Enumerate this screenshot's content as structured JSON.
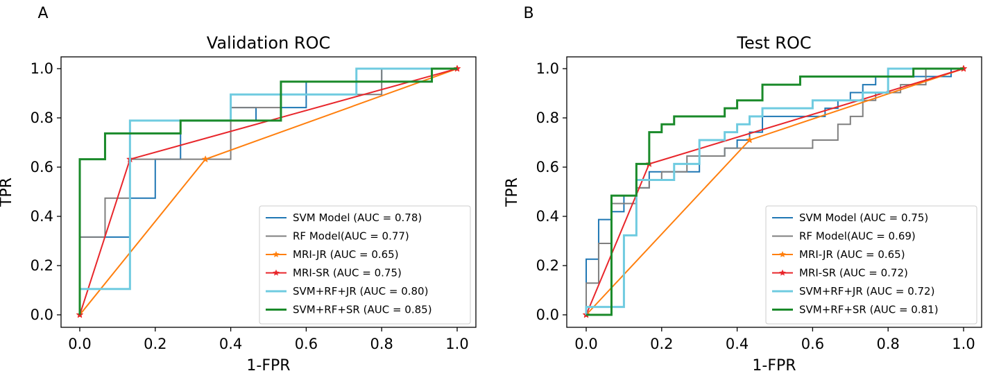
{
  "chart_data": [
    {
      "type": "line",
      "panel_label": "A",
      "title": "Validation ROC",
      "xlabel": "1-FPR",
      "ylabel": "TPR",
      "xlim": [
        0,
        1
      ],
      "ylim": [
        0,
        1
      ],
      "xticks": [
        "0.0",
        "0.2",
        "0.4",
        "0.6",
        "0.8",
        "1.0"
      ],
      "yticks": [
        "0.0",
        "0.2",
        "0.4",
        "0.6",
        "0.8",
        "1.0"
      ],
      "legend_position": "bottom-right",
      "series": [
        {
          "name": "SVM Model (AUC = 0.78)",
          "color": "#1f77b4",
          "marker": "none",
          "points": [
            [
              0,
              0
            ],
            [
              0,
              0.316
            ],
            [
              0.133,
              0.316
            ],
            [
              0.133,
              0.474
            ],
            [
              0.2,
              0.474
            ],
            [
              0.2,
              0.632
            ],
            [
              0.267,
              0.632
            ],
            [
              0.267,
              0.789
            ],
            [
              0.4,
              0.789
            ],
            [
              0.4,
              0.842
            ],
            [
              0.467,
              0.842
            ],
            [
              0.467,
              0.789
            ],
            [
              0.533,
              0.789
            ],
            [
              0.533,
              0.842
            ],
            [
              0.6,
              0.842
            ],
            [
              0.6,
              0.947
            ],
            [
              0.8,
              0.947
            ],
            [
              0.8,
              1.0
            ],
            [
              1.0,
              1.0
            ]
          ]
        },
        {
          "name": "RF Model(AUC = 0.77)",
          "color": "#7f7f7f",
          "marker": "none",
          "points": [
            [
              0,
              0
            ],
            [
              0,
              0.316
            ],
            [
              0.067,
              0.316
            ],
            [
              0.067,
              0.474
            ],
            [
              0.133,
              0.474
            ],
            [
              0.133,
              0.632
            ],
            [
              0.4,
              0.632
            ],
            [
              0.4,
              0.842
            ],
            [
              0.533,
              0.842
            ],
            [
              0.533,
              0.895
            ],
            [
              0.8,
              0.895
            ],
            [
              0.8,
              1.0
            ],
            [
              1.0,
              1.0
            ]
          ]
        },
        {
          "name": "MRI-JR (AUC =  0.65)",
          "color": "#ff7f0e",
          "marker": "star",
          "points": [
            [
              0,
              0
            ],
            [
              0.333,
              0.632
            ],
            [
              1.0,
              1.0
            ]
          ]
        },
        {
          "name": "MRI-SR (AUC =  0.75)",
          "color": "#e8262b",
          "marker": "star",
          "points": [
            [
              0,
              0
            ],
            [
              0.133,
              0.632
            ],
            [
              1.0,
              1.0
            ]
          ]
        },
        {
          "name": "SVM+RF+JR (AUC = 0.80)",
          "color": "#6fcbe0",
          "marker": "none",
          "points": [
            [
              0,
              0
            ],
            [
              0,
              0.105
            ],
            [
              0.133,
              0.105
            ],
            [
              0.133,
              0.789
            ],
            [
              0.267,
              0.789
            ],
            [
              0.267,
              0.789
            ],
            [
              0.4,
              0.789
            ],
            [
              0.4,
              0.895
            ],
            [
              0.733,
              0.895
            ],
            [
              0.733,
              1.0
            ],
            [
              1.0,
              1.0
            ]
          ]
        },
        {
          "name": "SVM+RF+SR (AUC = 0.85)",
          "color": "#1a8a2a",
          "marker": "none",
          "points": [
            [
              0,
              0
            ],
            [
              0,
              0.632
            ],
            [
              0.067,
              0.632
            ],
            [
              0.067,
              0.737
            ],
            [
              0.267,
              0.737
            ],
            [
              0.267,
              0.789
            ],
            [
              0.533,
              0.789
            ],
            [
              0.533,
              0.947
            ],
            [
              0.933,
              0.947
            ],
            [
              0.933,
              1.0
            ],
            [
              1.0,
              1.0
            ]
          ]
        }
      ]
    },
    {
      "type": "line",
      "panel_label": "B",
      "title": "Test ROC",
      "xlabel": "1-FPR",
      "ylabel": "TPR",
      "xlim": [
        0,
        1
      ],
      "ylim": [
        0,
        1
      ],
      "xticks": [
        "0.0",
        "0.2",
        "0.4",
        "0.6",
        "0.8",
        "1.0"
      ],
      "yticks": [
        "0.0",
        "0.2",
        "0.4",
        "0.6",
        "0.8",
        "1.0"
      ],
      "legend_position": "bottom-right",
      "series": [
        {
          "name": "SVM Model (AUC = 0.75)",
          "color": "#1f77b4",
          "marker": "none",
          "points": [
            [
              0,
              0
            ],
            [
              0,
              0.226
            ],
            [
              0.033,
              0.226
            ],
            [
              0.033,
              0.387
            ],
            [
              0.067,
              0.387
            ],
            [
              0.067,
              0.419
            ],
            [
              0.1,
              0.419
            ],
            [
              0.1,
              0.484
            ],
            [
              0.133,
              0.484
            ],
            [
              0.133,
              0.516
            ],
            [
              0.167,
              0.516
            ],
            [
              0.167,
              0.581
            ],
            [
              0.233,
              0.581
            ],
            [
              0.233,
              0.581
            ],
            [
              0.3,
              0.581
            ],
            [
              0.3,
              0.645
            ],
            [
              0.367,
              0.645
            ],
            [
              0.367,
              0.677
            ],
            [
              0.4,
              0.677
            ],
            [
              0.4,
              0.71
            ],
            [
              0.433,
              0.71
            ],
            [
              0.433,
              0.742
            ],
            [
              0.467,
              0.742
            ],
            [
              0.467,
              0.806
            ],
            [
              0.633,
              0.806
            ],
            [
              0.633,
              0.839
            ],
            [
              0.667,
              0.839
            ],
            [
              0.667,
              0.871
            ],
            [
              0.7,
              0.871
            ],
            [
              0.7,
              0.903
            ],
            [
              0.733,
              0.903
            ],
            [
              0.733,
              0.935
            ],
            [
              0.767,
              0.935
            ],
            [
              0.767,
              0.968
            ],
            [
              0.967,
              0.968
            ],
            [
              0.967,
              1.0
            ],
            [
              1.0,
              1.0
            ]
          ]
        },
        {
          "name": "RF Model(AUC = 0.69)",
          "color": "#7f7f7f",
          "marker": "none",
          "points": [
            [
              0,
              0
            ],
            [
              0,
              0.129
            ],
            [
              0.033,
              0.129
            ],
            [
              0.033,
              0.29
            ],
            [
              0.067,
              0.29
            ],
            [
              0.067,
              0.452
            ],
            [
              0.133,
              0.452
            ],
            [
              0.133,
              0.516
            ],
            [
              0.167,
              0.516
            ],
            [
              0.167,
              0.548
            ],
            [
              0.2,
              0.548
            ],
            [
              0.2,
              0.581
            ],
            [
              0.267,
              0.581
            ],
            [
              0.267,
              0.645
            ],
            [
              0.367,
              0.645
            ],
            [
              0.367,
              0.677
            ],
            [
              0.6,
              0.677
            ],
            [
              0.6,
              0.71
            ],
            [
              0.667,
              0.71
            ],
            [
              0.667,
              0.774
            ],
            [
              0.7,
              0.774
            ],
            [
              0.7,
              0.806
            ],
            [
              0.733,
              0.806
            ],
            [
              0.733,
              0.871
            ],
            [
              0.767,
              0.871
            ],
            [
              0.767,
              0.903
            ],
            [
              0.833,
              0.903
            ],
            [
              0.833,
              0.935
            ],
            [
              0.9,
              0.935
            ],
            [
              0.9,
              1.0
            ],
            [
              1.0,
              1.0
            ]
          ]
        },
        {
          "name": "MRI-JR (AUC =  0.65)",
          "color": "#ff7f0e",
          "marker": "star",
          "points": [
            [
              0,
              0
            ],
            [
              0.433,
              0.71
            ],
            [
              1.0,
              1.0
            ]
          ]
        },
        {
          "name": "MRI-SR (AUC = 0.72)",
          "color": "#e8262b",
          "marker": "star",
          "points": [
            [
              0,
              0
            ],
            [
              0.167,
              0.613
            ],
            [
              1.0,
              1.0
            ]
          ]
        },
        {
          "name": "SVM+RF+JR (AUC = 0.72)",
          "color": "#6fcbe0",
          "marker": "none",
          "points": [
            [
              0,
              0
            ],
            [
              0,
              0.032
            ],
            [
              0.1,
              0.032
            ],
            [
              0.1,
              0.323
            ],
            [
              0.133,
              0.323
            ],
            [
              0.133,
              0.548
            ],
            [
              0.233,
              0.548
            ],
            [
              0.233,
              0.613
            ],
            [
              0.3,
              0.613
            ],
            [
              0.3,
              0.71
            ],
            [
              0.367,
              0.71
            ],
            [
              0.367,
              0.742
            ],
            [
              0.4,
              0.742
            ],
            [
              0.4,
              0.774
            ],
            [
              0.433,
              0.774
            ],
            [
              0.433,
              0.806
            ],
            [
              0.467,
              0.806
            ],
            [
              0.467,
              0.839
            ],
            [
              0.6,
              0.839
            ],
            [
              0.6,
              0.871
            ],
            [
              0.733,
              0.871
            ],
            [
              0.733,
              0.903
            ],
            [
              0.8,
              0.903
            ],
            [
              0.8,
              1.0
            ],
            [
              1.0,
              1.0
            ]
          ]
        },
        {
          "name": "SVM+RF+SR (AUC = 0.81)",
          "color": "#1a8a2a",
          "marker": "none",
          "points": [
            [
              0,
              0
            ],
            [
              0.067,
              0
            ],
            [
              0.067,
              0.484
            ],
            [
              0.133,
              0.484
            ],
            [
              0.133,
              0.613
            ],
            [
              0.167,
              0.613
            ],
            [
              0.167,
              0.742
            ],
            [
              0.2,
              0.742
            ],
            [
              0.2,
              0.774
            ],
            [
              0.233,
              0.774
            ],
            [
              0.233,
              0.806
            ],
            [
              0.367,
              0.806
            ],
            [
              0.367,
              0.839
            ],
            [
              0.4,
              0.839
            ],
            [
              0.4,
              0.871
            ],
            [
              0.467,
              0.871
            ],
            [
              0.467,
              0.935
            ],
            [
              0.567,
              0.935
            ],
            [
              0.567,
              0.968
            ],
            [
              0.867,
              0.968
            ],
            [
              0.867,
              1.0
            ],
            [
              1.0,
              1.0
            ]
          ]
        }
      ]
    }
  ]
}
